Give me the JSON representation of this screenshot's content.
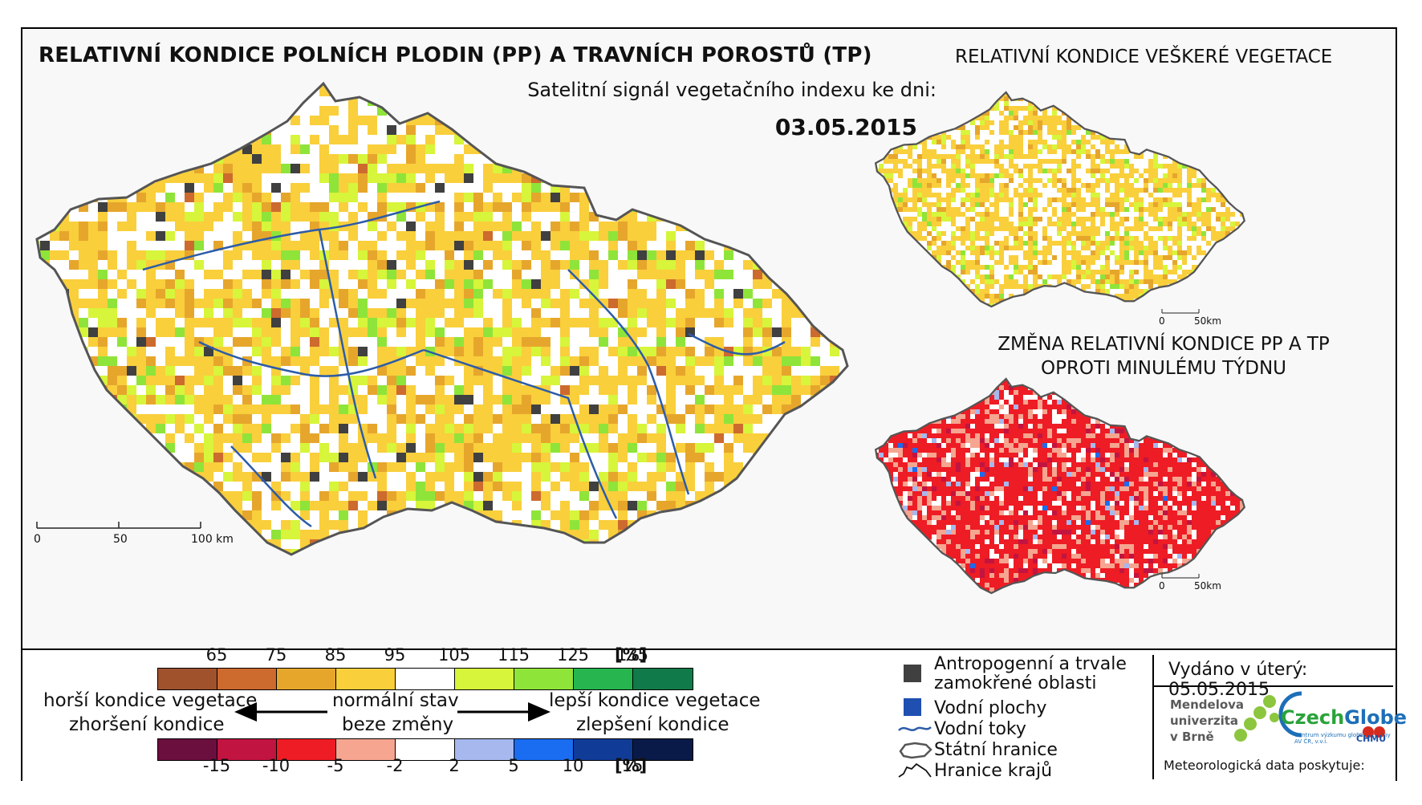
{
  "titles": {
    "main": "RELATIVNÍ KONDICE POLNÍCH PLODIN (PP) A TRAVNÍCH POROSTŮ (TP)",
    "subtitle": "Satelitní signál vegetačního indexu ke dni:",
    "date": "03.05.2015",
    "right_top": "RELATIVNÍ KONDICE VEŠKERÉ VEGETACE",
    "right_bottom_line1": "ZMĚNA RELATIVNÍ KONDICE PP A TP",
    "right_bottom_line2": "OPROTI MINULÉMU TÝDNU"
  },
  "scalebars": {
    "main": [
      "0",
      "50",
      "100 km"
    ],
    "small_top": [
      "0",
      "50km"
    ],
    "small_bottom": [
      "0",
      "50km"
    ]
  },
  "legend_condition": {
    "ticks": [
      "65",
      "75",
      "85",
      "95",
      "105",
      "115",
      "125",
      "135"
    ],
    "unit": "[%]",
    "colors": [
      "#a0522d",
      "#cd6a2e",
      "#e6a62c",
      "#f9cf3c",
      "#ffffff",
      "#d7f53a",
      "#8fe43a",
      "#26b54f",
      "#117a4a"
    ]
  },
  "legend_change": {
    "ticks": [
      "-15",
      "-10",
      "-5",
      "-2",
      "2",
      "5",
      "10",
      "15"
    ],
    "unit": "[%]",
    "colors": [
      "#6b0f3e",
      "#c21440",
      "#ee1c24",
      "#f5a590",
      "#ffffff",
      "#a6b8ee",
      "#1a6cf0",
      "#103c98",
      "#0a1a48"
    ]
  },
  "legend_labels": {
    "worse": "horší kondice vegetace",
    "worse_change": "zhoršení kondice",
    "normal": "normální stav",
    "normal_change": "beze změny",
    "better": "lepší kondice vegetace",
    "better_change": "zlepšení kondice"
  },
  "map_key": {
    "anthro_line1": "Antropogenní a trvale",
    "anthro_line2": "zamokřené oblasti",
    "water_bodies": "Vodní plochy",
    "rivers": "Vodní toky",
    "border": "Státní hranice",
    "regions": "Hranice krajů"
  },
  "issued": "Vydáno v úterý: 05.05.2015",
  "logos": {
    "mendel": [
      "Mendelova",
      "univerzita",
      "v Brně"
    ],
    "czech_green": "Czech",
    "czech_blue": "Globe",
    "czech_sub": "Centrum výzkumu globální změny AV ČR, v.v.i.",
    "chmu": "ČHMÚ",
    "meteo": "Meteorologická data poskytuje:"
  },
  "colors": {
    "anthro": "#404040",
    "water": "#1f4fb0",
    "river": "#2c5ca8"
  }
}
